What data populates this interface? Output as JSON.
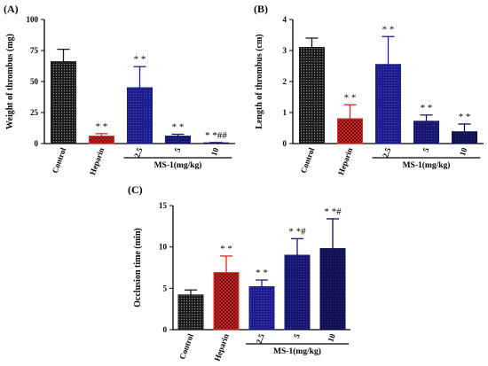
{
  "colors": {
    "control": "#1a1a1a",
    "heparin": "#d42a2a",
    "ms1_low": "#1c1c8c",
    "ms1_mid": "#16166e",
    "ms1_high": "#0f0f52"
  },
  "chart_data": [
    {
      "type": "bar",
      "panel": "(A)",
      "title": "",
      "xlabel": "",
      "ylabel": "Weight of thrombus (mg)",
      "ylim": [
        0,
        100
      ],
      "yticks": [
        "0",
        "25",
        "50",
        "75",
        "100"
      ],
      "categories": [
        "Control",
        "Heparin",
        "2.5",
        "5",
        "10"
      ],
      "values": [
        66,
        6,
        45,
        6,
        0.5
      ],
      "errors": [
        10,
        2,
        17,
        1.5,
        0.3
      ],
      "significance": [
        "",
        "* *",
        "* *",
        "* *",
        "* *##"
      ],
      "group_label": "MS-1(mg/kg)"
    },
    {
      "type": "bar",
      "panel": "(B)",
      "title": "",
      "xlabel": "",
      "ylabel": "Length of thrombus (cm)",
      "ylim": [
        0,
        4
      ],
      "yticks": [
        "0",
        "1",
        "2",
        "3",
        "4"
      ],
      "categories": [
        "Control",
        "Heparin",
        "2.5",
        "5",
        "10"
      ],
      "values": [
        3.1,
        0.8,
        2.55,
        0.72,
        0.38
      ],
      "errors": [
        0.3,
        0.45,
        0.9,
        0.2,
        0.25
      ],
      "significance": [
        "",
        "* *",
        "* *",
        "* *",
        "* *"
      ],
      "group_label": "MS-1(mg/kg)"
    },
    {
      "type": "bar",
      "panel": "(C)",
      "title": "",
      "xlabel": "",
      "ylabel": "Occlusion time (min)",
      "ylim": [
        0,
        15
      ],
      "yticks": [
        "0",
        "5",
        "10",
        "15"
      ],
      "categories": [
        "Control",
        "Heparin",
        "2.5",
        "5",
        "10"
      ],
      "values": [
        4.2,
        6.9,
        5.2,
        9.0,
        9.8
      ],
      "errors": [
        0.6,
        2.0,
        0.8,
        2.0,
        3.6
      ],
      "significance": [
        "",
        "* *",
        "* *",
        "* *#",
        "* *#"
      ],
      "group_label": "MS-1(mg/kg)"
    }
  ]
}
